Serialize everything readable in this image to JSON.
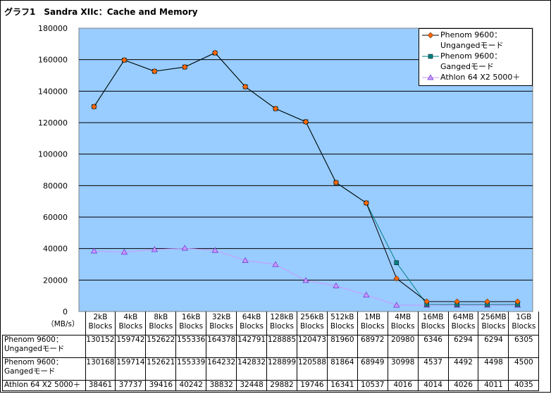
{
  "title": "グラフ1　Sandra XIIc：Cache and Memory",
  "chart_data": {
    "type": "line",
    "title": "グラフ1　Sandra XIIc：Cache and Memory",
    "ylabel": "（MB/s）",
    "ylim": [
      0,
      180000
    ],
    "yticks": [
      0,
      20000,
      40000,
      60000,
      80000,
      100000,
      120000,
      140000,
      160000,
      180000
    ],
    "grid": true,
    "legend_position": "top-right",
    "categories": [
      "2kB Blocks",
      "4kB Blocks",
      "8kB Blocks",
      "16kB Blocks",
      "32kB Blocks",
      "64kB Blocks",
      "128kB Blocks",
      "256kB Blocks",
      "512kB Blocks",
      "1MB Blocks",
      "4MB Blocks",
      "16MB Blocks",
      "64MB Blocks",
      "256MB Blocks",
      "1GB Blocks"
    ],
    "series": [
      {
        "name": "Phenom 9600：Unganged モード",
        "legend_line1": "Phenom 9600：",
        "legend_line2": "Ungangedモード",
        "color": "#000000",
        "marker_color": "#ff6600",
        "marker": "diamond",
        "values": [
          130152,
          159742,
          152622,
          155336,
          164378,
          142791,
          128885,
          120473,
          81960,
          68972,
          20980,
          6346,
          6294,
          6294,
          6305
        ]
      },
      {
        "name": "Phenom 9600：Ganged モード",
        "legend_line1": "Phenom 9600：",
        "legend_line2": "Gangedモード",
        "color": "#008080",
        "marker_color": "#008080",
        "marker": "square",
        "values": [
          130168,
          159714,
          152621,
          155339,
          164232,
          142832,
          128899,
          120588,
          81864,
          68949,
          30998,
          4537,
          4492,
          4498,
          4500
        ]
      },
      {
        "name": "Athlon 64 X2 5000＋",
        "legend_line1": "Athlon 64 X2 5000＋",
        "legend_line2": "",
        "color": "#cc99ff",
        "marker_color": "#cc99ff",
        "marker": "triangle",
        "values": [
          38461,
          37737,
          39416,
          40242,
          38832,
          32448,
          29882,
          19746,
          16341,
          10537,
          4016,
          4014,
          4026,
          4011,
          4035
        ]
      }
    ],
    "table_row_labels": [
      [
        "Phenom 9600：",
        "Ungangedモード"
      ],
      [
        "Phenom 9600：",
        "Gangedモード"
      ],
      [
        "Athlon 64 X2 5000＋",
        ""
      ]
    ]
  },
  "colors": {
    "plot_bg": "#99ccff",
    "grid": "#000000"
  }
}
